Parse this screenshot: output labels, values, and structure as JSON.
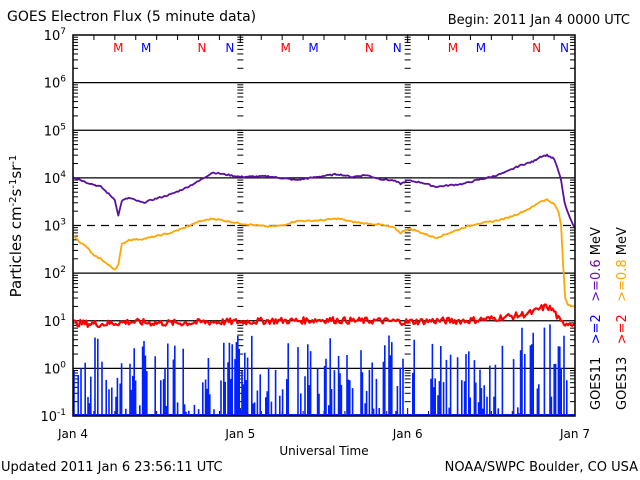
{
  "header": {
    "title": "GOES Electron Flux (5 minute data)",
    "begin": "Begin: 2011 Jan 4 0000 UTC"
  },
  "footer": {
    "updated": "Updated 2011 Jan  6 23:56:11 UTC",
    "credit": "NOAA/SWPC Boulder, CO USA"
  },
  "chart_data": {
    "type": "line",
    "title": "GOES Electron Flux (5 minute data)",
    "xlabel": "Universal Time",
    "ylabel": "Particles cm-2s-1sr-1",
    "yscale": "log",
    "ylim": [
      0.1,
      10000000
    ],
    "xlim": [
      0,
      72
    ],
    "x_units": "hours since 2011 Jan 4 0000 UTC",
    "x_ticks": [
      {
        "value": 0,
        "label": "Jan 4"
      },
      {
        "value": 24,
        "label": "Jan 5"
      },
      {
        "value": 48,
        "label": "Jan 6"
      },
      {
        "value": 72,
        "label": "Jan 7"
      }
    ],
    "y_ticks": [
      {
        "value": 10000000,
        "base": "10",
        "exp": "7"
      },
      {
        "value": 1000000,
        "base": "10",
        "exp": "6"
      },
      {
        "value": 100000,
        "base": "10",
        "exp": "5"
      },
      {
        "value": 10000,
        "base": "10",
        "exp": "4"
      },
      {
        "value": 1000,
        "base": "10",
        "exp": "3"
      },
      {
        "value": 100,
        "base": "10",
        "exp": "2"
      },
      {
        "value": 10,
        "base": "10",
        "exp": "1"
      },
      {
        "value": 1,
        "base": "10",
        "exp": "0"
      },
      {
        "value": 0.1,
        "base": "10",
        "exp": "-1"
      }
    ],
    "reference_lines": [
      {
        "value": 10000,
        "style": "solid"
      },
      {
        "value": 1000,
        "style": "dashed"
      },
      {
        "value": 100000,
        "style": "solid"
      },
      {
        "value": 1000000,
        "style": "solid"
      },
      {
        "value": 100,
        "style": "solid"
      },
      {
        "value": 10,
        "style": "solid"
      },
      {
        "value": 1,
        "style": "solid"
      }
    ],
    "markers": [
      {
        "label": "M",
        "x": 6.5,
        "color": "#ff0000"
      },
      {
        "label": "M",
        "x": 10.5,
        "color": "#0000ff"
      },
      {
        "label": "N",
        "x": 18.5,
        "color": "#ff0000"
      },
      {
        "label": "N",
        "x": 22.5,
        "color": "#0000ff"
      },
      {
        "label": "M",
        "x": 30.5,
        "color": "#ff0000"
      },
      {
        "label": "M",
        "x": 34.5,
        "color": "#0000ff"
      },
      {
        "label": "N",
        "x": 42.5,
        "color": "#ff0000"
      },
      {
        "label": "N",
        "x": 46.5,
        "color": "#0000ff"
      },
      {
        "label": "M",
        "x": 54.5,
        "color": "#ff0000"
      },
      {
        "label": "M",
        "x": 58.5,
        "color": "#0000ff"
      },
      {
        "label": "N",
        "x": 66.5,
        "color": "#ff0000"
      },
      {
        "label": "N",
        "x": 70.5,
        "color": "#0000ff"
      }
    ],
    "legend": {
      "placement": "right",
      "rows": [
        {
          "satellite": "GOES11",
          "low": ">=2",
          "low_color": "#0000ff",
          "high": ">=0.6",
          "high_color": "#6a0dad",
          "unit": "MeV"
        },
        {
          "satellite": "GOES13",
          "low": ">=2",
          "low_color": "#ff0000",
          "high": ">=0.8",
          "high_color": "#ffa500",
          "unit": "MeV"
        }
      ]
    },
    "series": [
      {
        "name": "GOES11 >=0.6 MeV",
        "color": "#5a0fa0",
        "x": [
          0,
          2,
          4,
          6,
          6.5,
          7,
          8,
          10,
          12,
          14,
          16,
          18,
          20,
          24,
          28,
          32,
          36,
          38,
          40,
          42,
          44,
          46,
          47,
          48,
          50,
          52,
          54,
          56,
          58,
          60,
          62,
          64,
          65,
          66,
          67,
          68,
          69,
          69.6,
          70,
          70.5,
          71,
          71.5,
          72
        ],
        "y": [
          10500,
          8000,
          6500,
          3500,
          1600,
          3300,
          3800,
          3000,
          3700,
          4500,
          6000,
          8500,
          13000,
          10500,
          10800,
          9000,
          11000,
          12000,
          10500,
          11500,
          9500,
          8800,
          7500,
          8800,
          8000,
          6500,
          7000,
          7500,
          9000,
          10500,
          13000,
          18000,
          20000,
          22000,
          28000,
          30000,
          25000,
          14000,
          9000,
          3000,
          1800,
          1200,
          900
        ]
      },
      {
        "name": "GOES13 >=0.8 MeV",
        "color": "#ffa500",
        "x": [
          0,
          1,
          2,
          3,
          4,
          5,
          6,
          6.5,
          7,
          8,
          10,
          12,
          14,
          16,
          18,
          20,
          24,
          28,
          30,
          32,
          34,
          36,
          38,
          40,
          42,
          44,
          46,
          47,
          48,
          49,
          50,
          52,
          54,
          56,
          58,
          60,
          62,
          64,
          66,
          67,
          68,
          69,
          69.6,
          70,
          70.3,
          70.6,
          71,
          72
        ],
        "y": [
          620,
          450,
          350,
          230,
          200,
          150,
          120,
          150,
          400,
          500,
          520,
          600,
          700,
          900,
          1200,
          1400,
          1100,
          950,
          1000,
          1250,
          1250,
          1300,
          1400,
          1200,
          1100,
          1050,
          900,
          700,
          850,
          800,
          700,
          550,
          700,
          900,
          1100,
          1200,
          1400,
          1800,
          2500,
          3200,
          3500,
          2800,
          2000,
          1000,
          150,
          30,
          22,
          20
        ]
      },
      {
        "name": "GOES13 >=2 MeV",
        "color": "#ff0000",
        "x": [
          0,
          4,
          8,
          12,
          16,
          20,
          24,
          28,
          32,
          36,
          40,
          44,
          48,
          52,
          56,
          60,
          62,
          64,
          66,
          67,
          68,
          69,
          69.6,
          70,
          71,
          72
        ],
        "y": [
          9,
          8.5,
          9.5,
          9,
          9,
          9.5,
          9.5,
          10,
          10,
          10.5,
          10,
          10,
          9.5,
          10,
          10,
          11,
          12,
          13,
          15,
          18,
          20,
          16,
          11,
          9,
          9,
          9
        ]
      },
      {
        "name": "GOES11 >=2 MeV",
        "color": "#0022ff",
        "style": "spiky bars between 0.1 and ~5"
      }
    ]
  }
}
